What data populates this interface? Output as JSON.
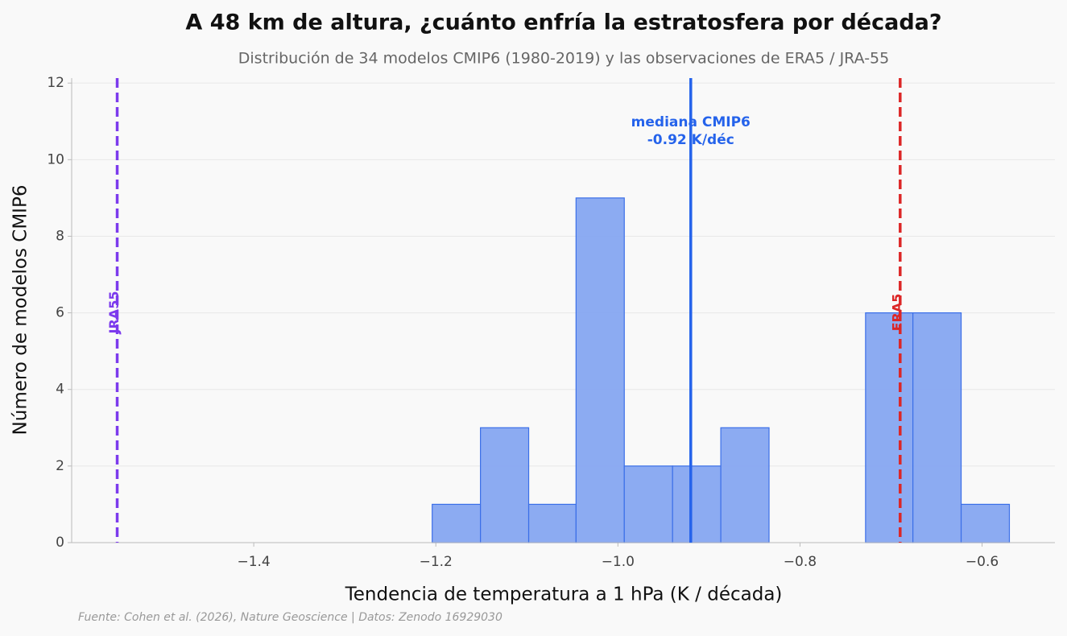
{
  "chart_data": {
    "type": "histogram",
    "title": "A 48 km de altura, ¿cuánto enfría la estratosfera por década?",
    "subtitle": "Distribución de 34 modelos CMIP6 (1980-2019) y las observaciones de ERA5 / JRA-55",
    "x_label": "Tendencia de temperatura a 1 hPa (K / década)",
    "y_label": "Número de modelos CMIP6",
    "source": "Fuente: Cohen et al. (2026), Nature Geoscience | Datos: Zenodo 16929030",
    "bins": [
      -1.204,
      -1.151,
      -1.098,
      -1.046,
      -0.993,
      -0.94,
      -0.887,
      -0.834,
      -0.781,
      -0.728,
      -0.676,
      -0.623,
      -0.57
    ],
    "values": [
      1,
      3,
      1,
      9,
      2,
      2,
      3,
      0,
      0,
      6,
      6,
      1
    ],
    "color": "#86a6f1",
    "edge_color": "#3b6fe8",
    "xlim": [
      -1.6,
      -0.52
    ],
    "ylim": [
      0,
      12.13
    ],
    "xticks": [
      {
        "value": -1.4,
        "label": "−1.4"
      },
      {
        "value": -1.2,
        "label": "−1.2"
      },
      {
        "value": -1.0,
        "label": "−1.0"
      },
      {
        "value": -0.8,
        "label": "−0.8"
      },
      {
        "value": -0.6,
        "label": "−0.6"
      }
    ],
    "yticks": [
      0,
      2,
      4,
      6,
      8,
      10,
      12
    ],
    "grid": true,
    "reference_lines": [
      {
        "name": "JRA55",
        "value": -1.55,
        "color": "#7c3aed",
        "style": "dashed"
      },
      {
        "name": "ERA5",
        "value": -0.69,
        "color": "#dc2626",
        "style": "dashed"
      }
    ],
    "median": {
      "label": "mediana CMIP6",
      "value": -0.92,
      "value_label": "-0.92 K/déc",
      "color": "#2563eb"
    }
  }
}
